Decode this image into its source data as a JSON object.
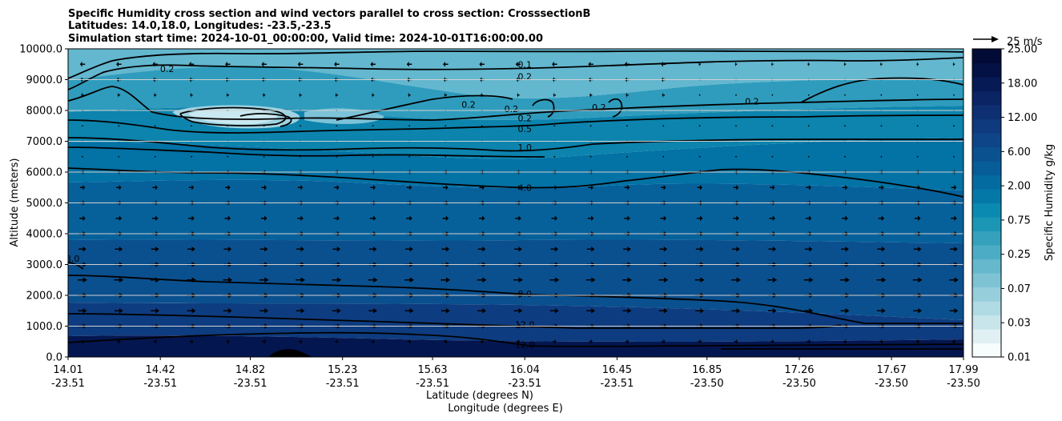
{
  "chart_data": {
    "type": "contour",
    "title_lines": [
      "Specific Humidity cross section and wind vectors parallel to cross section: CrosssectionB",
      "Latitudes: 14.0,18.0, Longitudes: -23.5,-23.5",
      "Simulation start time: 2024-10-01_00:00:00, Valid time: 2024-10-01T16:00:00.00"
    ],
    "ylabel": "Altitude (meters)",
    "xlabel_lat": "Latitude (degrees N)",
    "xlabel_lon": "Longitude (degrees E)",
    "ylim": [
      0,
      10000
    ],
    "y_ticks": [
      "0.0",
      "1000.0",
      "2000.0",
      "3000.0",
      "4000.0",
      "5000.0",
      "6000.0",
      "7000.0",
      "8000.0",
      "9000.0",
      "10000.0"
    ],
    "x_ticks": [
      {
        "lat": "14.01",
        "lon": "-23.51"
      },
      {
        "lat": "14.42",
        "lon": "-23.51"
      },
      {
        "lat": "14.82",
        "lon": "-23.51"
      },
      {
        "lat": "15.23",
        "lon": "-23.51"
      },
      {
        "lat": "15.63",
        "lon": "-23.51"
      },
      {
        "lat": "16.04",
        "lon": "-23.51"
      },
      {
        "lat": "16.45",
        "lon": "-23.51"
      },
      {
        "lat": "16.85",
        "lon": "-23.50"
      },
      {
        "lat": "17.26",
        "lon": "-23.50"
      },
      {
        "lat": "17.67",
        "lon": "-23.50"
      },
      {
        "lat": "17.99",
        "lon": "-23.50"
      }
    ],
    "colorbar": {
      "label": "Specific Humidity g/kg",
      "tick_labels": [
        "0.01",
        "0.03",
        "0.07",
        "0.25",
        "0.75",
        "2.00",
        "6.00",
        "12.00",
        "18.00",
        "25.00"
      ],
      "colors": [
        "#f7fcfd",
        "#e0f0f4",
        "#c8e5ec",
        "#b0dae4",
        "#97cedc",
        "#7ec3d4",
        "#66b8cd",
        "#4dacc5",
        "#35a1bd",
        "#1c96b5",
        "#0a8ab0",
        "#0479a8",
        "#036ba0",
        "#065d98",
        "#0a5190",
        "#0e4588",
        "#0f3a7e",
        "#0e2f72",
        "#0a2464",
        "#061a55",
        "#031145",
        "#020b36"
      ]
    },
    "quiver_key": "25 m/s",
    "contour_labels": [
      {
        "text": "0.1",
        "alt_m": 9500,
        "lat": 16.04
      },
      {
        "text": "0.2",
        "alt_m": 9100,
        "lat": 16.04
      },
      {
        "text": "0.2",
        "alt_m": 7750,
        "lat": 16.04
      },
      {
        "text": "0.5",
        "alt_m": 7400,
        "lat": 16.04
      },
      {
        "text": "1.0",
        "alt_m": 6800,
        "lat": 16.04
      },
      {
        "text": "4.0",
        "alt_m": 5500,
        "lat": 16.04
      },
      {
        "text": "8.0",
        "alt_m": 2050,
        "lat": 16.04
      },
      {
        "text": "12.0",
        "alt_m": 1050,
        "lat": 16.04
      },
      {
        "text": "12.0",
        "alt_m": 400,
        "lat": 16.04
      },
      {
        "text": "0.2",
        "alt_m": 9350,
        "lat": 14.45
      },
      {
        "text": "0.2",
        "alt_m": 8200,
        "lat": 15.79
      },
      {
        "text": "0.2",
        "alt_m": 8050,
        "lat": 15.98
      },
      {
        "text": "0.2",
        "alt_m": 8100,
        "lat": 16.37
      },
      {
        "text": "0.2",
        "alt_m": 8300,
        "lat": 17.05
      },
      {
        "text": "8.0",
        "alt_m": 3200,
        "lat": 14.03
      }
    ],
    "wind": {
      "direction": "mostly toward increasing latitude below 6500 m, toward decreasing latitude above 8500 m",
      "profile_m_s": [
        {
          "alt_m": 500,
          "u": 4
        },
        {
          "alt_m": 1000,
          "u": 9
        },
        {
          "alt_m": 1500,
          "u": 10
        },
        {
          "alt_m": 2000,
          "u": 11
        },
        {
          "alt_m": 2500,
          "u": 11
        },
        {
          "alt_m": 3000,
          "u": 10
        },
        {
          "alt_m": 3500,
          "u": 9
        },
        {
          "alt_m": 4000,
          "u": 8
        },
        {
          "alt_m": 4500,
          "u": 7
        },
        {
          "alt_m": 5000,
          "u": 6
        },
        {
          "alt_m": 5500,
          "u": 6
        },
        {
          "alt_m": 6000,
          "u": 4
        },
        {
          "alt_m": 6500,
          "u": 2
        },
        {
          "alt_m": 7000,
          "u": 1
        },
        {
          "alt_m": 7500,
          "u": 0
        },
        {
          "alt_m": 8000,
          "u": 0
        },
        {
          "alt_m": 8500,
          "u": -3
        },
        {
          "alt_m": 9000,
          "u": -5
        },
        {
          "alt_m": 9500,
          "u": -6
        },
        {
          "alt_m": 10000,
          "u": -4
        }
      ]
    }
  }
}
